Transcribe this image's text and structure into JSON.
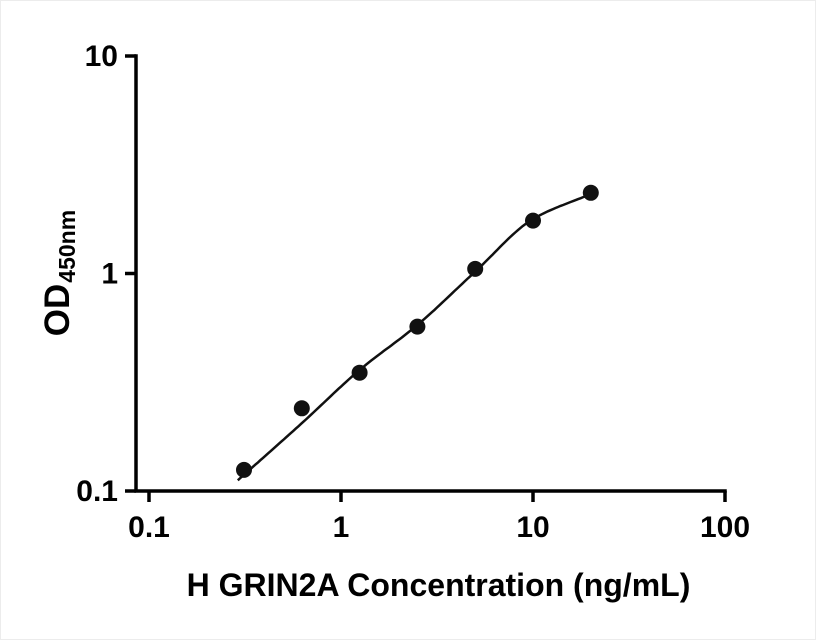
{
  "chart_data": {
    "type": "scatter",
    "title": "",
    "xlabel": "H GRIN2A Concentration (ng/mL)",
    "ylabel": "OD450nm",
    "ylabel_main": "OD",
    "ylabel_sub": "450nm",
    "x_scale": "log",
    "y_scale": "log",
    "xlim": [
      0.1,
      100
    ],
    "ylim": [
      0.1,
      10
    ],
    "x_ticks": [
      0.1,
      1,
      10,
      100
    ],
    "y_ticks": [
      0.1,
      1,
      10
    ],
    "grid": false,
    "legend": "none",
    "axis_color": "#000000",
    "marker": {
      "shape": "circle",
      "color": "#111111",
      "radius": 8
    },
    "line": {
      "color": "#111111",
      "width": 2.5,
      "style": "4PL-fit"
    },
    "points": {
      "x": [
        0.3125,
        0.625,
        1.25,
        2.5,
        5,
        10,
        20
      ],
      "y": [
        0.125,
        0.24,
        0.35,
        0.57,
        1.05,
        1.75,
        2.35
      ]
    },
    "fit_curve_anchors": {
      "x": [
        0.29,
        0.625,
        1.25,
        2.5,
        5,
        10,
        20
      ],
      "y": [
        0.112,
        0.205,
        0.36,
        0.58,
        1.02,
        1.78,
        2.32
      ]
    }
  }
}
